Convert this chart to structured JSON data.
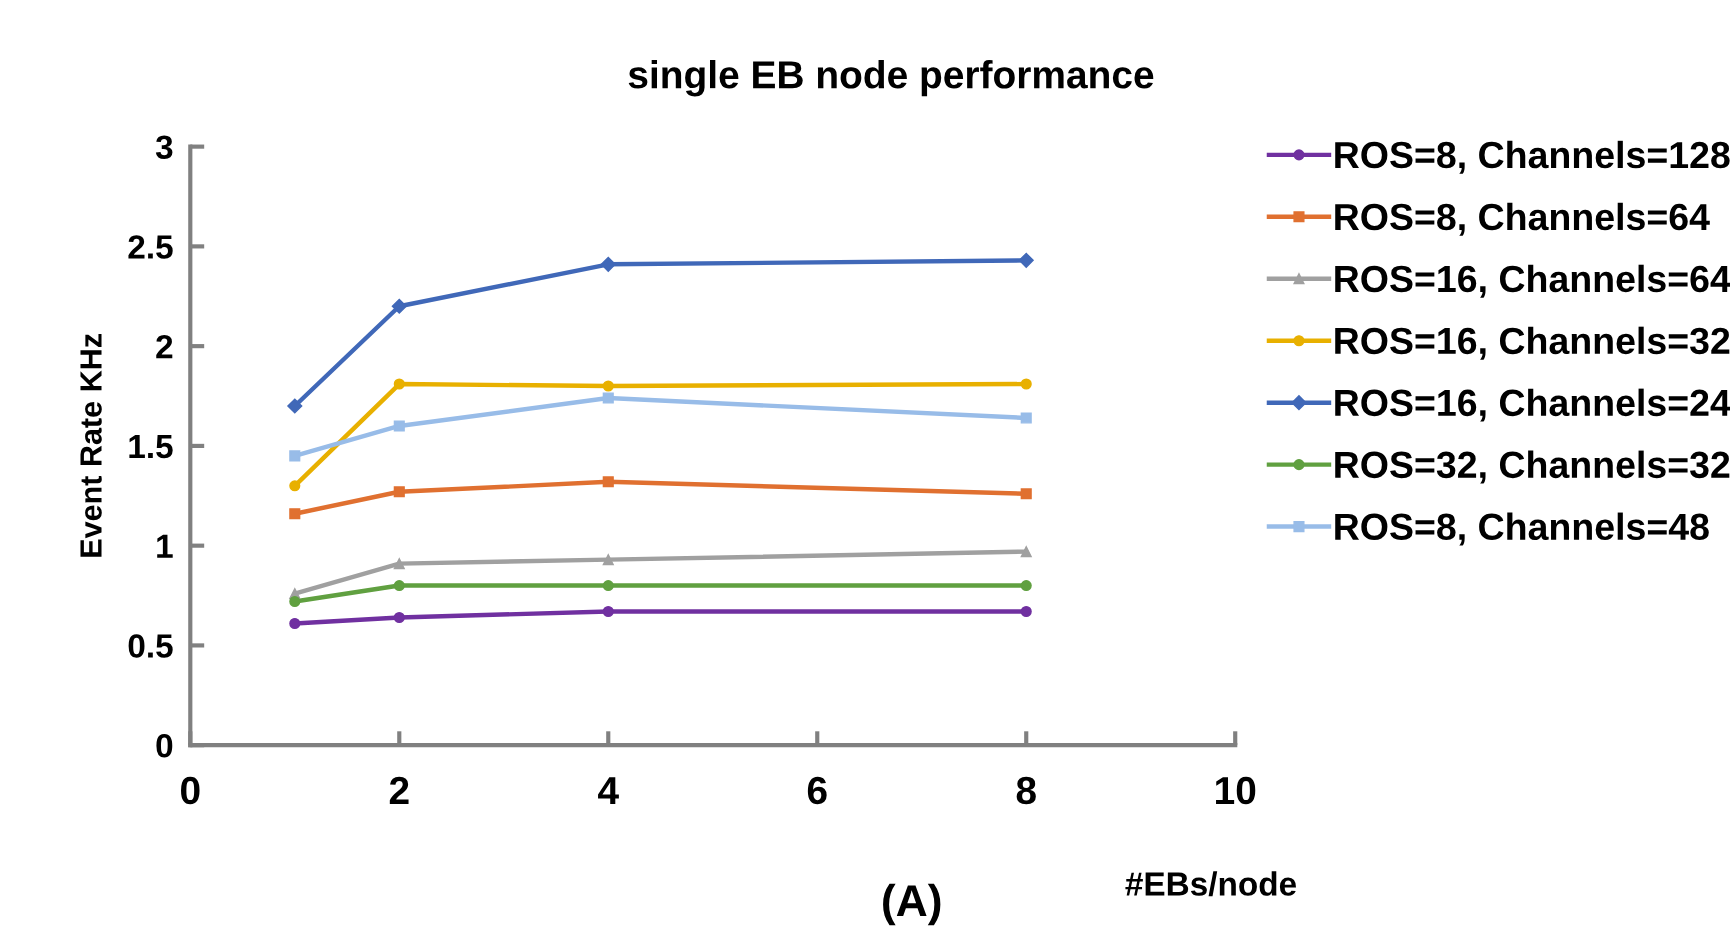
{
  "chart_data": {
    "type": "line",
    "title": "single EB node performance",
    "xlabel": "#EBs/node",
    "ylabel": "Event Rate KHz",
    "x": [
      1,
      2,
      4,
      8
    ],
    "xlim": [
      0,
      10
    ],
    "xticks": [
      0,
      2,
      4,
      6,
      8,
      10
    ],
    "ylim": [
      0,
      3
    ],
    "yticks": [
      0,
      0.5,
      1,
      1.5,
      2,
      2.5,
      3
    ],
    "grid": false,
    "legend": "right",
    "line_style": "solid",
    "annotations": [
      "(A)"
    ],
    "series": [
      {
        "name": "ROS=8, Channels=128",
        "color": "#7030a0",
        "marker": "circle",
        "values": [
          0.61,
          0.64,
          0.67,
          0.67
        ]
      },
      {
        "name": "ROS=8, Channels=64",
        "color": "#e07030",
        "marker": "square",
        "values": [
          1.16,
          1.27,
          1.32,
          1.26
        ]
      },
      {
        "name": "ROS=16, Channels=64",
        "color": "#a0a0a0",
        "marker": "triangle",
        "values": [
          0.76,
          0.91,
          0.93,
          0.97
        ]
      },
      {
        "name": "ROS=16, Channels=32",
        "color": "#e8b000",
        "marker": "circle",
        "values": [
          1.3,
          1.81,
          1.8,
          1.81
        ]
      },
      {
        "name": "ROS=16, Channels=24",
        "color": "#4068b8",
        "marker": "diamond",
        "values": [
          1.7,
          2.2,
          2.41,
          2.43
        ]
      },
      {
        "name": "ROS=32, Channels=32",
        "color": "#60a040",
        "marker": "circle",
        "values": [
          0.72,
          0.8,
          0.8,
          0.8
        ]
      },
      {
        "name": "ROS=8, Channels=48",
        "color": "#98bce8",
        "marker": "square",
        "values": [
          1.45,
          1.6,
          1.74,
          1.64
        ]
      }
    ]
  }
}
